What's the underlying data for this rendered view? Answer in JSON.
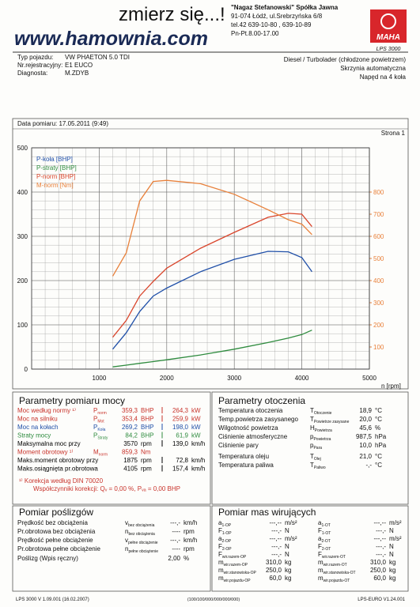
{
  "header": {
    "slogan": "zmierz się...!",
    "website": "www.hamownia.com",
    "company": [
      "\"Nagaz Stefanowski\" Spółka Jawna",
      "91-074 Łódź, ul.Srebrzyńska 6/8",
      "tel.42 639-10-80 , 639-10-89",
      "Pn-Pt.8.00-17.00"
    ],
    "logo": "MAHA",
    "product": "LPS 3000"
  },
  "vehicle": {
    "rows": [
      [
        "Typ pojazdu:",
        "VW PHAETON 5.0 TDI"
      ],
      [
        "Nr.rejestracyjny:",
        "E1 EUCO"
      ],
      [
        "Diagnosta:",
        "M.ZDYB"
      ]
    ],
    "info": [
      "Diesel / Turbolader (chłodzone powietrzem)",
      "Skrzynia automatyczna",
      "Napęd na 4 koła"
    ]
  },
  "date": "Data pomiaru: 17.05.2011 (9:49)",
  "page": "Strona 1",
  "chart_data": {
    "type": "line",
    "x_label": "n [rpm]",
    "x": [
      1200,
      1400,
      1600,
      1800,
      2000,
      2500,
      3000,
      3500,
      3800,
      4000,
      4150
    ],
    "series": [
      {
        "name": "P-koła [BHP]",
        "color": "#1f4fa8",
        "values": [
          45,
          82,
          130,
          165,
          183,
          220,
          248,
          266,
          265,
          252,
          220
        ]
      },
      {
        "name": "P-straty [BHP]",
        "color": "#2e8b3e",
        "values": [
          5,
          9,
          13,
          17,
          21,
          32,
          45,
          60,
          70,
          78,
          88
        ]
      },
      {
        "name": "P-norm [BHP]",
        "color": "#d9452b",
        "values": [
          72,
          110,
          165,
          198,
          228,
          273,
          309,
          343,
          352,
          350,
          322
        ]
      },
      {
        "name": "M-norm [Nm]",
        "color": "#e8803a",
        "axis": "y2",
        "values": [
          420,
          525,
          760,
          848,
          853,
          838,
          790,
          720,
          675,
          655,
          608
        ]
      }
    ],
    "xlim": [
      0,
      5000
    ],
    "xticks": [
      1000,
      2000,
      3000,
      4000,
      5000
    ],
    "ylim": [
      0,
      500
    ],
    "yticks": [
      0,
      100,
      200,
      300,
      400,
      500
    ],
    "y2lim": [
      0,
      1000
    ],
    "y2ticks": [
      100,
      200,
      300,
      400,
      500,
      600,
      700,
      800
    ],
    "y2color": "#e8803a",
    "grid": true,
    "legend": "upper left"
  },
  "power": {
    "title": "Parametry pomiaru mocy",
    "row_colors": [
      "#c8322a",
      "#c8322a",
      "#1f4fa8",
      "#2e8b3e",
      "#000000",
      "#c8322a",
      "#000000",
      "#000000"
    ],
    "rows": [
      [
        "Moc według normy ¹⁾",
        {
          "s": "P",
          "sub": "norm"
        },
        "359,3",
        "BHP",
        "264,3",
        "kW"
      ],
      [
        "Moc na silniku",
        {
          "s": "P",
          "sub": "Mot"
        },
        "353,4",
        "BHP",
        "259,9",
        "kW"
      ],
      [
        "Moc na kołach",
        {
          "s": "P",
          "sub": "Koła"
        },
        "269,2",
        "BHP",
        "198,0",
        "kW"
      ],
      [
        "Straty mocy",
        {
          "s": "P",
          "sub": "Straty"
        },
        "84,2",
        "BHP",
        "61,9",
        "kW"
      ],
      [
        "Maksymalna moc przy",
        null,
        "3570",
        "rpm",
        "139,0",
        "km/h"
      ],
      [
        "Moment obrotowy ¹⁾",
        {
          "s": "M",
          "sub": "norm"
        },
        "859,3",
        "Nm",
        null,
        null
      ],
      [
        "Maks.moment obrotowy przy",
        null,
        "1875",
        "rpm",
        "72,8",
        "km/h"
      ],
      [
        "Maks.osiągnięta pr.obrotowa",
        null,
        "4105",
        "rpm",
        "157,4",
        "km/h"
      ]
    ],
    "notes": [
      "¹⁾ Korekcja według DIN 70020",
      "Współczynniki korekcji: Qᵥ = 0,00 %, Pᵥₐ = 0,00 BHP"
    ]
  },
  "ambient": {
    "title": "Parametry otoczenia",
    "rows": [
      [
        "Temperatura otoczenia",
        {
          "s": "T",
          "sub": "Otoczenie"
        },
        "18,9",
        "°C"
      ],
      [
        "Temp.powietrza zasysanego",
        {
          "s": "T",
          "sub": "Powietrze zasysane"
        },
        "20,0",
        "°C"
      ],
      [
        "Wilgotność powietrza",
        {
          "s": "H",
          "sub": "Powietrza"
        },
        "45,6",
        "%"
      ],
      [
        "Ciśnienie atmosferyczne",
        {
          "s": "p",
          "sub": "Powietrza"
        },
        "987,5",
        "hPa"
      ],
      [
        "Ciśnienie pary",
        {
          "s": "p",
          "sub": "Para"
        },
        "10,0",
        "hPa"
      ],
      [
        "Temperatura oleju",
        {
          "s": "T",
          "sub": "Olej"
        },
        "21,0",
        "°C"
      ],
      [
        "Temperatura paliwa",
        {
          "s": "T",
          "sub": "Paliwo"
        },
        "-,-",
        "°C"
      ]
    ]
  },
  "slip": {
    "title": "Pomiar poślizgów",
    "rows": [
      [
        "Prędkość bez obciążenia",
        {
          "s": "v",
          "sub": "bez obciążenia"
        },
        "---,-",
        "km/h"
      ],
      [
        "Pr.obrotowa bez obciążenia",
        {
          "s": "n",
          "sub": "bez obciążenia"
        },
        "----",
        "rpm"
      ],
      [
        "Prędkość pełne obciążenie",
        {
          "s": "v",
          "sub": "pełne obciążenie"
        },
        "---,-",
        "km/h"
      ],
      [
        "Pr.obrotowa pełne obciążenie",
        {
          "s": "n",
          "sub": "pełne obciążenie"
        },
        "----",
        "rpm"
      ],
      [
        "Poślizg (Wpis ręczny)",
        null,
        "2,00",
        "%"
      ]
    ]
  },
  "masses": {
    "title": "Pomiar mas wirujących",
    "rows": [
      [
        {
          "s": "a",
          "sub": "1-OP"
        },
        "---,--",
        "m/s²",
        {
          "s": "a",
          "sub": "1-OT"
        },
        "---,--",
        "m/s²"
      ],
      [
        {
          "s": "F",
          "sub": "1-OP"
        },
        "---,-",
        "N",
        {
          "s": "F",
          "sub": "1-OT"
        },
        "---,-",
        "N"
      ],
      [
        {
          "s": "a",
          "sub": "2-OP"
        },
        "---,--",
        "m/s²",
        {
          "s": "a",
          "sub": "2-OT"
        },
        "---,--",
        "m/s²"
      ],
      [
        {
          "s": "F",
          "sub": "2-OP"
        },
        "---,-",
        "N",
        {
          "s": "F",
          "sub": "2-OT"
        },
        "---,-",
        "N"
      ],
      [
        {
          "s": "F",
          "sub": "wir.razem-OP"
        },
        "---,-",
        "N",
        {
          "s": "F",
          "sub": "wir.razem-OT"
        },
        "---,-",
        "N"
      ],
      [
        {
          "s": "m",
          "sub": "wir.razem-OP"
        },
        "310,0",
        "kg",
        {
          "s": "m",
          "sub": "wir.razem-OT"
        },
        "310,0",
        "kg"
      ],
      [
        {
          "s": "m",
          "sub": "wir.stanowiska-OP"
        },
        "250,0",
        "kg",
        {
          "s": "m",
          "sub": "wir.stanowiska-OT"
        },
        "250,0",
        "kg"
      ],
      [
        {
          "s": "m",
          "sub": "wir.pojazdu-OP"
        },
        "60,0",
        "kg",
        {
          "s": "m",
          "sub": "wir.pojazdu-OT"
        },
        "60,0",
        "kg"
      ]
    ]
  },
  "footer": [
    "LPS 3000 V 1.09.001 (16.02.2007)",
    "(100/100/000/000/000/000)",
    "LPS-EURO V1.24.001"
  ]
}
